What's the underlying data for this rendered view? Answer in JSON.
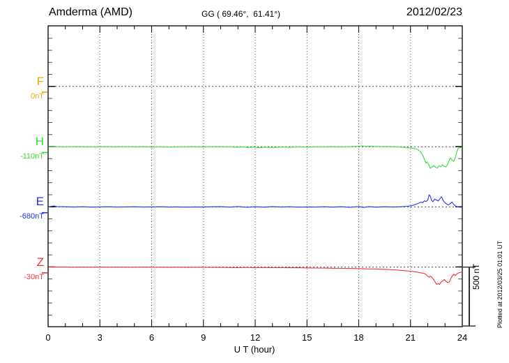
{
  "header": {
    "station": "Amderma (AMD)",
    "coords": "GG ( 69.46°,  61.41°)",
    "date": "2012/02/23"
  },
  "chart_data": {
    "type": "line",
    "title": "Amderma (AMD) magnetogram 2012/02/23",
    "xlabel": "U T (hour)",
    "x_range": [
      0,
      24
    ],
    "x_major_ticks": [
      0,
      3,
      6,
      9,
      12,
      15,
      18,
      21,
      24
    ],
    "x_minor_step_hours": 1,
    "y_minor_step_nT": 100,
    "grid": "dotted vertical lines every 3 h; dotted horizontal line at each component baseline",
    "legend_position": "left margin, one colored label per trace",
    "scale_bar": {
      "label": "500 nT",
      "nT": 500
    },
    "plotted_at": "Plotted at 2012/03/25 01:01 UT",
    "series": [
      {
        "name": "F",
        "label": "F",
        "baseline_label": "0nT",
        "baseline_nT": 0,
        "color": "#f0a500",
        "note": "no trace plotted (data gap), dotted baseline only",
        "points": []
      },
      {
        "name": "H",
        "label": "H",
        "baseline_label": "-110nT",
        "baseline_nT": -110,
        "color": "#33dd33",
        "points": [
          [
            0,
            0
          ],
          [
            0.5,
            1
          ],
          [
            1,
            -2
          ],
          [
            1.5,
            1
          ],
          [
            2,
            0
          ],
          [
            2.5,
            -2
          ],
          [
            3,
            0
          ],
          [
            3.5,
            1
          ],
          [
            4,
            -1
          ],
          [
            4.5,
            1
          ],
          [
            5,
            -1
          ],
          [
            5.5,
            0
          ],
          [
            6,
            -2
          ],
          [
            6.5,
            -1
          ],
          [
            7,
            -3
          ],
          [
            7.5,
            -2
          ],
          [
            8,
            -1
          ],
          [
            8.5,
            0
          ],
          [
            9,
            -1
          ],
          [
            9.5,
            1
          ],
          [
            10,
            0
          ],
          [
            10.5,
            -2
          ],
          [
            11,
            -4
          ],
          [
            11.3,
            -1
          ],
          [
            11.6,
            -7
          ],
          [
            11.9,
            -3
          ],
          [
            12.2,
            -8
          ],
          [
            12.5,
            -4
          ],
          [
            13,
            -6
          ],
          [
            13.5,
            -3
          ],
          [
            14,
            -5
          ],
          [
            14.5,
            -2
          ],
          [
            15,
            -3
          ],
          [
            15.5,
            -1
          ],
          [
            16,
            -2
          ],
          [
            16.5,
            0
          ],
          [
            17,
            -1
          ],
          [
            17.5,
            1
          ],
          [
            18,
            4
          ],
          [
            18.2,
            7
          ],
          [
            18.4,
            2
          ],
          [
            18.7,
            4
          ],
          [
            19,
            1
          ],
          [
            19.5,
            2
          ],
          [
            20,
            0
          ],
          [
            20.4,
            -3
          ],
          [
            20.7,
            -6
          ],
          [
            21,
            -10
          ],
          [
            21.2,
            -14
          ],
          [
            21.4,
            -22
          ],
          [
            21.55,
            -38
          ],
          [
            21.7,
            -70
          ],
          [
            21.8,
            -105
          ],
          [
            21.9,
            -138
          ],
          [
            21.95,
            -128
          ],
          [
            22.05,
            -148
          ],
          [
            22.15,
            -182
          ],
          [
            22.25,
            -170
          ],
          [
            22.35,
            -158
          ],
          [
            22.45,
            -172
          ],
          [
            22.55,
            -180
          ],
          [
            22.65,
            -160
          ],
          [
            22.75,
            -168
          ],
          [
            22.85,
            -152
          ],
          [
            22.95,
            -165
          ],
          [
            23.05,
            -170
          ],
          [
            23.15,
            -148
          ],
          [
            23.25,
            -112
          ],
          [
            23.32,
            -95
          ],
          [
            23.4,
            -110
          ],
          [
            23.5,
            -125
          ],
          [
            23.6,
            -90
          ],
          [
            23.68,
            -45
          ],
          [
            23.75,
            -15
          ],
          [
            23.85,
            -8
          ],
          [
            24,
            -6
          ]
        ]
      },
      {
        "name": "E",
        "label": "E",
        "baseline_label": "-680nT",
        "baseline_nT": -680,
        "color": "#2233ee",
        "points": [
          [
            0,
            0
          ],
          [
            0.2,
            5
          ],
          [
            0.35,
            8
          ],
          [
            0.5,
            3
          ],
          [
            1,
            1
          ],
          [
            1.5,
            -1
          ],
          [
            2,
            1
          ],
          [
            2.5,
            -2
          ],
          [
            3,
            0
          ],
          [
            3.5,
            1
          ],
          [
            4,
            -1
          ],
          [
            4.5,
            0
          ],
          [
            5,
            1
          ],
          [
            5.5,
            -1
          ],
          [
            6,
            0
          ],
          [
            6.5,
            1
          ],
          [
            7,
            -1
          ],
          [
            7.5,
            0
          ],
          [
            8,
            -2
          ],
          [
            8.5,
            0
          ],
          [
            9,
            -1
          ],
          [
            9.5,
            1
          ],
          [
            10,
            2
          ],
          [
            10.5,
            -2
          ],
          [
            11,
            3
          ],
          [
            11.5,
            -3
          ],
          [
            12,
            1
          ],
          [
            12.5,
            -2
          ],
          [
            13,
            2
          ],
          [
            13.5,
            -1
          ],
          [
            14,
            1
          ],
          [
            14.5,
            -2
          ],
          [
            15,
            0
          ],
          [
            15.5,
            -1
          ],
          [
            16,
            1
          ],
          [
            16.5,
            -2
          ],
          [
            17,
            1
          ],
          [
            17.5,
            -3
          ],
          [
            18,
            3
          ],
          [
            18.3,
            -4
          ],
          [
            18.6,
            2
          ],
          [
            19,
            -2
          ],
          [
            19.5,
            1
          ],
          [
            20,
            -1
          ],
          [
            20.5,
            2
          ],
          [
            20.8,
            5
          ],
          [
            21,
            9
          ],
          [
            21.2,
            16
          ],
          [
            21.35,
            24
          ],
          [
            21.5,
            33
          ],
          [
            21.6,
            40
          ],
          [
            21.7,
            35
          ],
          [
            21.8,
            52
          ],
          [
            21.9,
            45
          ],
          [
            22,
            58
          ],
          [
            22.08,
            102
          ],
          [
            22.15,
            90
          ],
          [
            22.22,
            55
          ],
          [
            22.3,
            44
          ],
          [
            22.4,
            66
          ],
          [
            22.5,
            58
          ],
          [
            22.6,
            50
          ],
          [
            22.7,
            68
          ],
          [
            22.8,
            85
          ],
          [
            22.9,
            52
          ],
          [
            23,
            34
          ],
          [
            23.1,
            24
          ],
          [
            23.2,
            16
          ],
          [
            23.3,
            28
          ],
          [
            23.4,
            40
          ],
          [
            23.5,
            22
          ],
          [
            23.6,
            8
          ],
          [
            23.7,
            1
          ],
          [
            23.8,
            -2
          ],
          [
            24,
            -3
          ]
        ]
      },
      {
        "name": "Z",
        "label": "Z",
        "baseline_label": "-30nT",
        "baseline_nT": -30,
        "color": "#ee3333",
        "points": [
          [
            0,
            0
          ],
          [
            0.5,
            1
          ],
          [
            1,
            0
          ],
          [
            1.5,
            -1
          ],
          [
            2,
            0
          ],
          [
            2.5,
            -1
          ],
          [
            3,
            0
          ],
          [
            3.5,
            -1
          ],
          [
            4,
            0
          ],
          [
            4.5,
            -1
          ],
          [
            5,
            -1
          ],
          [
            5.5,
            0
          ],
          [
            6,
            -1
          ],
          [
            6.5,
            -1
          ],
          [
            7,
            -2
          ],
          [
            7.5,
            -1
          ],
          [
            8,
            -2
          ],
          [
            8.5,
            -2
          ],
          [
            9,
            -2
          ],
          [
            9.5,
            -3
          ],
          [
            10,
            -3
          ],
          [
            10.5,
            -4
          ],
          [
            11,
            -5
          ],
          [
            11.5,
            -3
          ],
          [
            12,
            -5
          ],
          [
            12.5,
            -4
          ],
          [
            13,
            -5
          ],
          [
            13.5,
            -5
          ],
          [
            14,
            -6
          ],
          [
            14.5,
            -6
          ],
          [
            15,
            -7
          ],
          [
            15.5,
            -8
          ],
          [
            16,
            -9
          ],
          [
            16.5,
            -10
          ],
          [
            17,
            -11
          ],
          [
            17.5,
            -12
          ],
          [
            18,
            -13
          ],
          [
            18.5,
            -15
          ],
          [
            19,
            -16
          ],
          [
            19.5,
            -19
          ],
          [
            20,
            -23
          ],
          [
            20.5,
            -28
          ],
          [
            20.8,
            -32
          ],
          [
            21,
            -35
          ],
          [
            21.2,
            -38
          ],
          [
            21.4,
            -43
          ],
          [
            21.6,
            -48
          ],
          [
            21.8,
            -54
          ],
          [
            21.9,
            -62
          ],
          [
            22,
            -78
          ],
          [
            22.1,
            -84
          ],
          [
            22.15,
            -76
          ],
          [
            22.25,
            -88
          ],
          [
            22.35,
            -108
          ],
          [
            22.45,
            -132
          ],
          [
            22.52,
            -146
          ],
          [
            22.6,
            -138
          ],
          [
            22.68,
            -147
          ],
          [
            22.78,
            -124
          ],
          [
            22.88,
            -116
          ],
          [
            22.95,
            -104
          ],
          [
            23.05,
            -120
          ],
          [
            23.15,
            -130
          ],
          [
            23.25,
            -126
          ],
          [
            23.35,
            -92
          ],
          [
            23.45,
            -68
          ],
          [
            23.52,
            -60
          ],
          [
            23.6,
            -72
          ],
          [
            23.7,
            -56
          ],
          [
            23.8,
            -48
          ],
          [
            23.9,
            -44
          ],
          [
            24,
            -41
          ]
        ]
      }
    ]
  }
}
